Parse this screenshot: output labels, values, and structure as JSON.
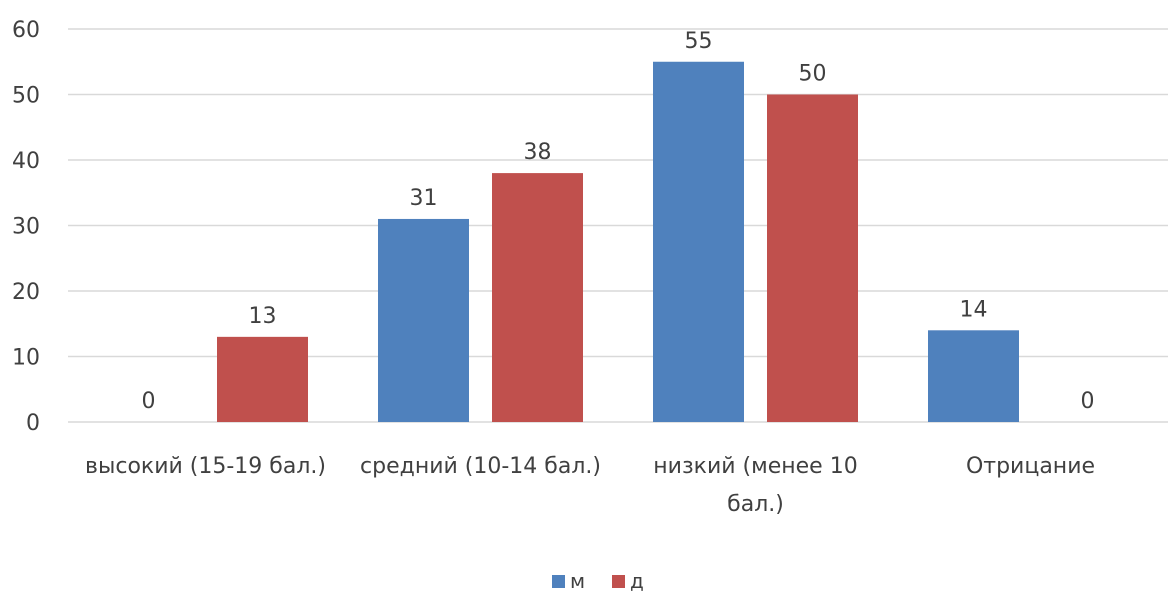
{
  "chart_data": {
    "type": "bar",
    "categories": [
      [
        "высокий (15-19 бал.)"
      ],
      [
        "средний (10-14 бал.)"
      ],
      [
        "низкий  (менее 10",
        "бал.)"
      ],
      [
        "Отрицание"
      ]
    ],
    "series": [
      {
        "name": "м",
        "color": "#4f81bd",
        "values": [
          0,
          31,
          55,
          14
        ],
        "labels": [
          "0",
          "31",
          "55",
          "14"
        ]
      },
      {
        "name": "д",
        "color": "#c0504d",
        "values": [
          13,
          38,
          50,
          0
        ],
        "labels": [
          "13",
          "38",
          "50",
          "0"
        ]
      }
    ],
    "ylim": [
      0,
      60
    ],
    "yticks": [
      0,
      10,
      20,
      30,
      40,
      50,
      60
    ],
    "grid": true,
    "legend": "bottom"
  }
}
